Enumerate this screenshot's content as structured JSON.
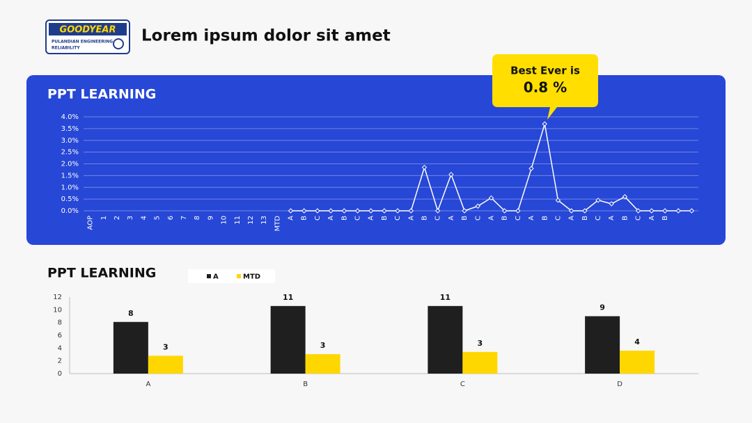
{
  "header": {
    "logo_brand": "GOODYEAR",
    "logo_line1": "PULANDIAN ENGINEERING",
    "logo_line2": "RELIABILITY",
    "title": "Lorem ipsum dolor sit amet"
  },
  "callout": {
    "line1": "Best Ever is",
    "line2": "0.8 %"
  },
  "chart_data": [
    {
      "type": "line",
      "title": "PPT LEARNING",
      "color": "#ffffff",
      "grid": true,
      "categories": [
        "AOP",
        "1",
        "2",
        "3",
        "4",
        "5",
        "6",
        "7",
        "8",
        "9",
        "10",
        "11",
        "12",
        "13",
        "MTD",
        "A",
        "B",
        "C",
        "A",
        "B",
        "C",
        "A",
        "B",
        "C",
        "A",
        "B",
        "C",
        "A",
        "B",
        "C",
        "A",
        "B",
        "C",
        "A",
        "B",
        "C",
        "A",
        "B",
        "C",
        "A",
        "B",
        "C",
        "A",
        "B",
        null,
        null
      ],
      "values": [
        null,
        null,
        null,
        null,
        null,
        null,
        null,
        null,
        null,
        null,
        null,
        null,
        null,
        null,
        null,
        0,
        0,
        0,
        0,
        0,
        0,
        0,
        0,
        0,
        0,
        1.85,
        0,
        1.55,
        0,
        0.2,
        0.55,
        0,
        0,
        1.8,
        3.7,
        0.45,
        0,
        0,
        0.45,
        0.3,
        0.6,
        0,
        0,
        0,
        0,
        0
      ],
      "ylim": [
        0,
        4
      ],
      "yticks": [
        {
          "value": 0,
          "label": "0.0%"
        },
        {
          "value": 0.5,
          "label": "0.5%"
        },
        {
          "value": 1,
          "label": "1.0%"
        },
        {
          "value": 1.5,
          "label": "1.5%"
        },
        {
          "value": 2,
          "label": "2.0%"
        },
        {
          "value": 2.5,
          "label": "2.5%"
        },
        {
          "value": 3,
          "label": "3.0%"
        },
        {
          "value": 3.5,
          "label": "3.5%"
        },
        {
          "value": 4,
          "label": "4.0%"
        }
      ]
    },
    {
      "type": "bar",
      "title": "PPT LEARNING",
      "legend": "top",
      "grid": false,
      "categories": [
        "A",
        "B",
        "C",
        "D"
      ],
      "series": [
        {
          "name": "A",
          "color": "#1f1f1f",
          "values": [
            8.1,
            10.6,
            10.6,
            9.0
          ],
          "value_labels": [
            "8",
            "11",
            "11",
            "9"
          ]
        },
        {
          "name": "MTD",
          "color": "#ffd700",
          "values": [
            2.8,
            3.05,
            3.4,
            3.6
          ],
          "value_labels": [
            "3",
            "3",
            "3",
            "4"
          ]
        }
      ],
      "ylim": [
        0,
        12
      ],
      "yticks": [
        0,
        2,
        4,
        6,
        8,
        10,
        12
      ]
    }
  ]
}
